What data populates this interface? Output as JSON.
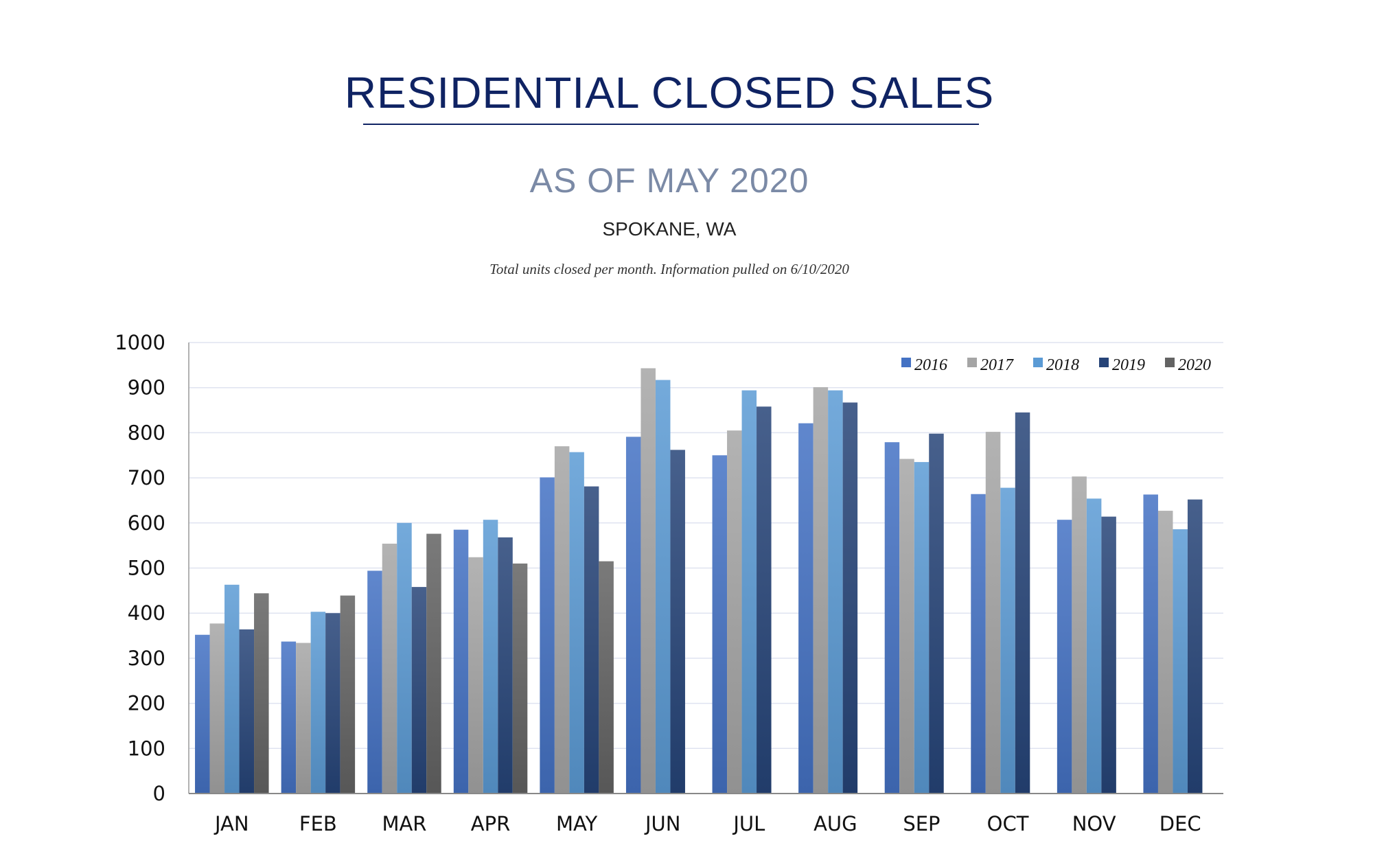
{
  "header": {
    "title": "RESIDENTIAL CLOSED SALES",
    "subtitle": "AS OF MAY 2020",
    "location": "SPOKANE, WA",
    "note": "Total units closed per month.  Information pulled on 6/10/2020"
  },
  "chart_data": {
    "type": "bar",
    "title": "RESIDENTIAL CLOSED SALES",
    "xlabel": "",
    "ylabel": "",
    "ylim": [
      0,
      1000
    ],
    "yticks": [
      0,
      100,
      200,
      300,
      400,
      500,
      600,
      700,
      800,
      900,
      1000
    ],
    "grid": true,
    "legend_position": "top-right",
    "categories": [
      "JAN",
      "FEB",
      "MAR",
      "APR",
      "MAY",
      "JUN",
      "JUL",
      "AUG",
      "SEP",
      "OCT",
      "NOV",
      "DEC"
    ],
    "series": [
      {
        "name": "2016",
        "color": "#4472C4",
        "values": [
          352,
          337,
          494,
          585,
          701,
          791,
          750,
          821,
          779,
          664,
          607,
          663
        ]
      },
      {
        "name": "2017",
        "color": "#A5A5A5",
        "values": [
          377,
          334,
          554,
          524,
          770,
          943,
          805,
          901,
          742,
          802,
          703,
          627
        ]
      },
      {
        "name": "2018",
        "color": "#5B9BD5",
        "values": [
          463,
          403,
          600,
          607,
          757,
          917,
          894,
          894,
          735,
          678,
          654,
          586
        ]
      },
      {
        "name": "2019",
        "color": "#264478",
        "values": [
          364,
          400,
          458,
          568,
          681,
          762,
          858,
          867,
          798,
          845,
          614,
          652
        ]
      },
      {
        "name": "2020",
        "color": "#636363",
        "values": [
          444,
          439,
          576,
          510,
          515,
          null,
          null,
          null,
          null,
          null,
          null,
          null
        ]
      }
    ]
  }
}
